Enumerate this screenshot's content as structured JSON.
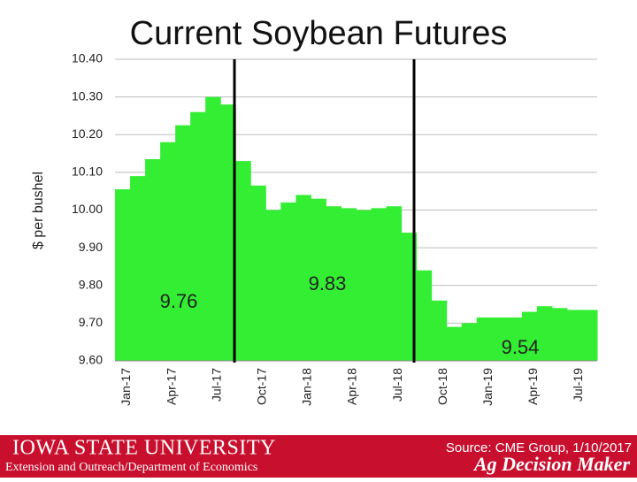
{
  "chart_data": {
    "type": "bar",
    "title": "Current Soybean Futures",
    "y_label": "$ per bushel",
    "categories": [
      "Jan-17",
      null,
      null,
      "Apr-17",
      null,
      null,
      "Jul-17",
      null,
      null,
      "Oct-17",
      null,
      null,
      "Jan-18",
      null,
      null,
      "Apr-18",
      null,
      null,
      "Jul-18",
      null,
      null,
      "Oct-18",
      null,
      null,
      "Jan-19",
      null,
      null,
      "Apr-19",
      null,
      null,
      "Jul-19",
      null
    ],
    "values": [
      10.055,
      10.09,
      10.135,
      10.18,
      10.225,
      10.26,
      10.3,
      10.28,
      10.13,
      10.065,
      10.0,
      10.02,
      10.04,
      10.03,
      10.01,
      10.005,
      10.0,
      10.005,
      10.01,
      9.94,
      9.84,
      9.76,
      9.69,
      9.7,
      9.715,
      9.715,
      9.715,
      9.73,
      9.745,
      9.74,
      9.735,
      9.735
    ],
    "color": "#33ee33",
    "ylim": [
      9.6,
      10.4
    ],
    "yticks": [
      {
        "value": 9.6,
        "label": "9.60"
      },
      {
        "value": 9.7,
        "label": "9.70"
      },
      {
        "value": 9.8,
        "label": "9.80"
      },
      {
        "value": 9.9,
        "label": "9.90"
      },
      {
        "value": 10.0,
        "label": "10.00"
      },
      {
        "value": 10.1,
        "label": "10.10"
      },
      {
        "value": 10.2,
        "label": "10.20"
      },
      {
        "value": 10.3,
        "label": "10.30"
      },
      {
        "value": 10.4,
        "label": "10.40"
      }
    ],
    "grid": true,
    "annotations": [
      "9.76",
      "9.83",
      "9.54"
    ]
  },
  "footer": {
    "university": "Iowa State University",
    "department": "Extension and Outreach/Department of Economics",
    "source": "Source: CME Group, 1/10/2017",
    "brand": "Ag Decision Maker"
  }
}
